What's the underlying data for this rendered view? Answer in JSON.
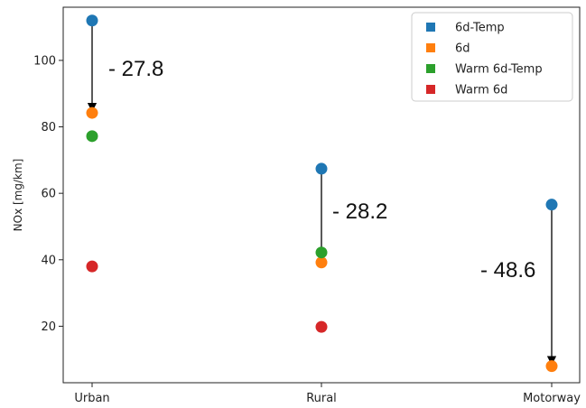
{
  "chart_data": {
    "type": "scatter",
    "categories": [
      "Urban",
      "Rural",
      "Motorway"
    ],
    "ylabel": "NOx [mg/km]",
    "xlabel": "",
    "title": "",
    "ylim": [
      3,
      116
    ],
    "yticks": [
      20,
      40,
      60,
      80,
      100
    ],
    "grid": false,
    "legend_position": "top-right",
    "series": [
      {
        "name": "6d-Temp",
        "color": "#1f77b4",
        "values": [
          112,
          67.4,
          56.6
        ]
      },
      {
        "name": "6d",
        "color": "#ff7f0e",
        "values": [
          84.2,
          39.2,
          8
        ]
      },
      {
        "name": "Warm 6d-Temp",
        "color": "#2ca02c",
        "values": [
          77.2,
          42.2,
          null
        ]
      },
      {
        "name": "Warm 6d",
        "color": "#d62728",
        "values": [
          38,
          19.8,
          null
        ]
      }
    ],
    "annotations": [
      {
        "category": "Urban",
        "from": 112,
        "to": 84.2,
        "text": "- 27.8"
      },
      {
        "category": "Rural",
        "from": 67.4,
        "to": 39.2,
        "text": "- 28.2"
      },
      {
        "category": "Motorway",
        "from": 56.6,
        "to": 8,
        "text": "- 48.6"
      }
    ]
  }
}
